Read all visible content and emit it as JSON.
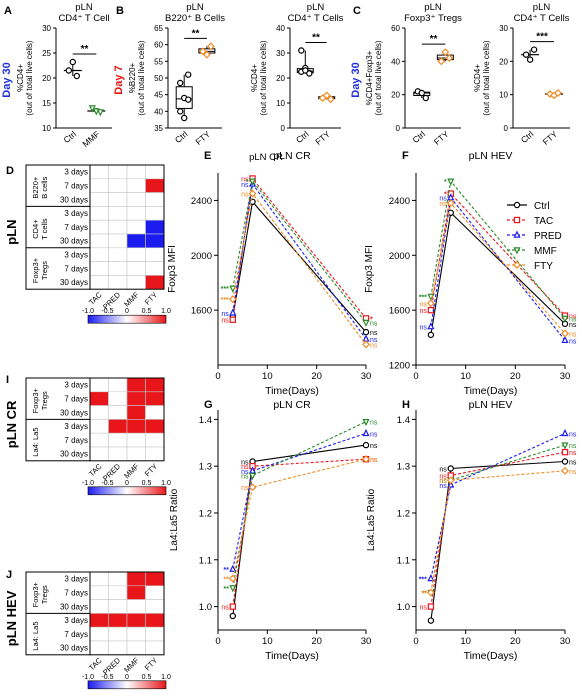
{
  "colors": {
    "black": "#000000",
    "red": "#e8161b",
    "blue": "#1b1bf0",
    "green": "#2a8a2a",
    "orange": "#f08a24",
    "day30": "#2030e0",
    "day7": "#e81010"
  },
  "top_panels": [
    {
      "letter": "A",
      "title": [
        "pLN",
        "CD4⁺ T Cell"
      ],
      "ylabel": [
        "%CD4+",
        "(out of total live cells)"
      ],
      "day": "Day 30",
      "day_color": "day30",
      "ylim": [
        10,
        30
      ],
      "yticks": [
        10,
        15,
        20,
        25,
        30
      ],
      "groups": [
        "Ctrl",
        "MMF"
      ],
      "sig": "**",
      "points": [
        [
          21.5,
          23.2,
          20.4
        ],
        [
          14.0,
          13.4,
          13.2
        ]
      ],
      "box": false,
      "colors": [
        "black",
        "green"
      ]
    },
    {
      "letter": "B",
      "title": [
        "pLN",
        "B220⁺ B Cells"
      ],
      "ylabel": [
        "%B220+",
        "(out of total live cells)"
      ],
      "day": "Day 7",
      "day_color": "day7",
      "ylim": [
        35,
        65
      ],
      "yticks": [
        35,
        40,
        45,
        50,
        55,
        60,
        65
      ],
      "groups": [
        "Ctrl",
        "FTY"
      ],
      "sig": "**",
      "points": [
        [
          48.5,
          44.0,
          43.5,
          40.0,
          38.0,
          51.0
        ],
        [
          58.0,
          57.0,
          59.5
        ]
      ],
      "box": true,
      "colors": [
        "black",
        "orange"
      ]
    },
    {
      "letter": "",
      "title": [
        "pLN",
        "CD4⁺ T Cells"
      ],
      "ylabel": [
        "%CD4+",
        "(out of total live cells)"
      ],
      "day": "",
      "day_color": "day7",
      "ylim": [
        0,
        40
      ],
      "yticks": [
        0,
        10,
        20,
        30,
        40
      ],
      "groups": [
        "Ctrl",
        "FTY"
      ],
      "sig": "**",
      "points": [
        [
          31.0,
          24.0,
          22.0,
          22.5,
          23.0,
          21.8
        ],
        [
          12.0,
          13.0,
          11.5
        ]
      ],
      "box": true,
      "colors": [
        "black",
        "orange"
      ]
    },
    {
      "letter": "C",
      "title": [
        "pLN",
        "Foxp3⁺ Tregs"
      ],
      "ylabel": [
        "%CD4+Foxp3+",
        "(out of total live cells)"
      ],
      "day": "Day 30",
      "day_color": "day30",
      "ylim": [
        0,
        60
      ],
      "yticks": [
        0,
        20,
        40,
        60
      ],
      "groups": [
        "Ctrl",
        "FTY"
      ],
      "sig": "**",
      "points": [
        [
          22.0,
          21.0,
          18.0
        ],
        [
          40.0,
          45.5,
          42.0
        ]
      ],
      "box": true,
      "colors": [
        "black",
        "orange"
      ]
    },
    {
      "letter": "",
      "title": [
        "pLN",
        "CD4⁺ T Cells"
      ],
      "ylabel": [
        "%CD4+",
        "(out of total live cells)"
      ],
      "day": "",
      "day_color": "day30",
      "ylim": [
        0,
        30
      ],
      "yticks": [
        0,
        10,
        20,
        30
      ],
      "groups": [
        "Ctrl",
        "FTY"
      ],
      "sig": "***",
      "points": [
        [
          22.0,
          20.5,
          23.5
        ],
        [
          10.2,
          9.8,
          10.5
        ]
      ],
      "box": false,
      "colors": [
        "black",
        "orange"
      ]
    }
  ],
  "pLN_CR_label": "pLN CR",
  "heatmaps": [
    {
      "letter": "D",
      "big": "pLN",
      "groups": [
        {
          "name": "B220+\nB cells",
          "rows": [
            "3 days",
            "7 days",
            "30 days"
          ]
        },
        {
          "name": "CD4+\nT cells",
          "rows": [
            "3 days",
            "7 days",
            "30 days"
          ]
        },
        {
          "name": "Foxp3+\nTregs",
          "rows": [
            "3 days",
            "7 days",
            "30 days"
          ]
        }
      ],
      "columns": [
        "TAC",
        "PRED",
        "MMF",
        "FTY"
      ],
      "values": [
        [
          0,
          0,
          0,
          0
        ],
        [
          0,
          0,
          0,
          1
        ],
        [
          0,
          0,
          0,
          0
        ],
        [
          0,
          0,
          0,
          0
        ],
        [
          0,
          0,
          0,
          -1
        ],
        [
          0,
          0,
          -1,
          -1
        ],
        [
          0,
          0,
          0,
          0
        ],
        [
          0,
          0,
          0,
          0
        ],
        [
          0,
          0,
          0,
          1
        ]
      ]
    },
    {
      "letter": "I",
      "big": "pLN CR",
      "groups": [
        {
          "name": "Foxp3+\nTregs",
          "rows": [
            "3 days",
            "7 days",
            "30 days"
          ]
        },
        {
          "name": "La4: La5",
          "rows": [
            "3 days",
            "7 days",
            "30 days"
          ]
        }
      ],
      "columns": [
        "TAC",
        "PRED",
        "MMF",
        "FTY"
      ],
      "values": [
        [
          0,
          0,
          1,
          1
        ],
        [
          1,
          0,
          1,
          1
        ],
        [
          0,
          0,
          1,
          0
        ],
        [
          0,
          1,
          1,
          1
        ],
        [
          0,
          0,
          0,
          0
        ],
        [
          0,
          0,
          0,
          0
        ]
      ]
    },
    {
      "letter": "J",
      "big": "pLN HEV",
      "groups": [
        {
          "name": "Foxp3+\nTregs",
          "rows": [
            "3 days",
            "7 days",
            "30 days"
          ]
        },
        {
          "name": "La4: La5",
          "rows": [
            "3 days",
            "7 days",
            "30 days"
          ]
        }
      ],
      "columns": [
        "TAC",
        "PRED",
        "MMF",
        "FTY"
      ],
      "values": [
        [
          0,
          0,
          1,
          1
        ],
        [
          0,
          0,
          1,
          0
        ],
        [
          0,
          0,
          0,
          0
        ],
        [
          1,
          1,
          1,
          1
        ],
        [
          0,
          0,
          0,
          0
        ],
        [
          0,
          0,
          0,
          0
        ]
      ]
    }
  ],
  "colorbar": {
    "ticks": [
      "-1.0",
      "-0.5",
      "0",
      "0.5",
      "1.0"
    ]
  },
  "legend": [
    "Ctrl",
    "TAC",
    "PRED",
    "MMF",
    "FTY"
  ],
  "chart_data": [
    {
      "letter": "E",
      "type": "line",
      "title": "pLN CR",
      "xlabel": "Time(Days)",
      "ylabel": "Foxp3 MFI",
      "xlim": [
        0,
        30
      ],
      "ylim": [
        1200,
        2600
      ],
      "xticks": [
        0,
        10,
        20,
        30
      ],
      "yticks": [
        1600,
        2000,
        2400
      ],
      "x": [
        3,
        7,
        30
      ],
      "series": [
        {
          "name": "Ctrl",
          "values": [
            1550,
            2390,
            1440
          ],
          "labels": [
            "",
            "",
            "ns"
          ]
        },
        {
          "name": "TAC",
          "values": [
            1530,
            2560,
            1540
          ],
          "labels": [
            "ns",
            "ns",
            "*"
          ]
        },
        {
          "name": "PRED",
          "values": [
            1580,
            2520,
            1390
          ],
          "labels": [
            "ns",
            "ns",
            "ns"
          ]
        },
        {
          "name": "MMF",
          "values": [
            1760,
            2540,
            1510
          ],
          "labels": [
            "***",
            "*",
            "ns"
          ]
        },
        {
          "name": "FTY",
          "values": [
            1680,
            2450,
            1350
          ],
          "labels": [
            "***",
            "ns",
            "ns"
          ]
        }
      ]
    },
    {
      "letter": "F",
      "type": "line",
      "title": "pLN HEV",
      "xlabel": "Time(Days)",
      "ylabel": "Foxp3 MFI",
      "xlim": [
        0,
        30
      ],
      "ylim": [
        1200,
        2600
      ],
      "xticks": [
        0,
        10,
        20,
        30
      ],
      "yticks": [
        1200,
        1600,
        2000,
        2400
      ],
      "x": [
        3,
        7,
        30
      ],
      "series": [
        {
          "name": "Ctrl",
          "values": [
            1420,
            2310,
            1500
          ],
          "labels": [
            "",
            "",
            "ns"
          ]
        },
        {
          "name": "TAC",
          "values": [
            1600,
            2450,
            1560
          ],
          "labels": [
            "ns",
            "*",
            "ns"
          ]
        },
        {
          "name": "PRED",
          "values": [
            1480,
            2420,
            1380
          ],
          "labels": [
            "ns",
            "ns",
            "ns"
          ]
        },
        {
          "name": "MMF",
          "values": [
            1700,
            2540,
            1540
          ],
          "labels": [
            "***",
            "*",
            "ns"
          ]
        },
        {
          "name": "FTY",
          "values": [
            1650,
            2380,
            1430
          ],
          "labels": [
            "ns",
            "ns",
            "ns"
          ]
        }
      ]
    },
    {
      "letter": "G",
      "type": "line",
      "title": "pLN CR",
      "xlabel": "Time(Days)",
      "ylabel": "La4:La5 Ratio",
      "xlim": [
        0,
        30
      ],
      "ylim": [
        0.95,
        1.42
      ],
      "xticks": [
        0,
        10,
        20,
        30
      ],
      "yticks": [
        1.0,
        1.1,
        1.2,
        1.3,
        1.4
      ],
      "x": [
        3,
        7,
        30
      ],
      "series": [
        {
          "name": "Ctrl",
          "values": [
            0.98,
            1.31,
            1.345
          ],
          "labels": [
            "",
            "ns",
            "ns"
          ]
        },
        {
          "name": "TAC",
          "values": [
            1.0,
            1.3,
            1.315
          ],
          "labels": [
            "ns",
            "ns",
            "ns"
          ]
        },
        {
          "name": "PRED",
          "values": [
            1.08,
            1.29,
            1.37
          ],
          "labels": [
            "**",
            "ns",
            "ns"
          ]
        },
        {
          "name": "MMF",
          "values": [
            1.04,
            1.28,
            1.395
          ],
          "labels": [
            "**",
            "ns",
            "ns"
          ]
        },
        {
          "name": "FTY",
          "values": [
            1.06,
            1.255,
            1.315
          ],
          "labels": [
            "**",
            "ns",
            "ns"
          ]
        }
      ]
    },
    {
      "letter": "H",
      "type": "line",
      "title": "pLN HEV",
      "xlabel": "Time(Days)",
      "ylabel": "La4:La5 Ratio",
      "xlim": [
        0,
        30
      ],
      "ylim": [
        0.95,
        1.42
      ],
      "xticks": [
        0,
        10,
        20,
        30
      ],
      "yticks": [
        1.0,
        1.1,
        1.2,
        1.3,
        1.4
      ],
      "x": [
        3,
        7,
        30
      ],
      "series": [
        {
          "name": "Ctrl",
          "values": [
            0.97,
            1.295,
            1.31
          ],
          "labels": [
            "",
            "ns",
            "ns"
          ]
        },
        {
          "name": "TAC",
          "values": [
            1.0,
            1.28,
            1.33
          ],
          "labels": [
            "ns",
            "ns",
            "ns"
          ]
        },
        {
          "name": "PRED",
          "values": [
            1.06,
            1.26,
            1.37
          ],
          "labels": [
            "***",
            "ns",
            "ns"
          ]
        },
        {
          "name": "MMF",
          "values": [
            1.03,
            1.27,
            1.345
          ],
          "labels": [
            "**",
            "ns",
            "ns"
          ]
        },
        {
          "name": "FTY",
          "values": [
            1.03,
            1.27,
            1.29
          ],
          "labels": [
            "**",
            "ns",
            "ns"
          ]
        }
      ]
    }
  ]
}
